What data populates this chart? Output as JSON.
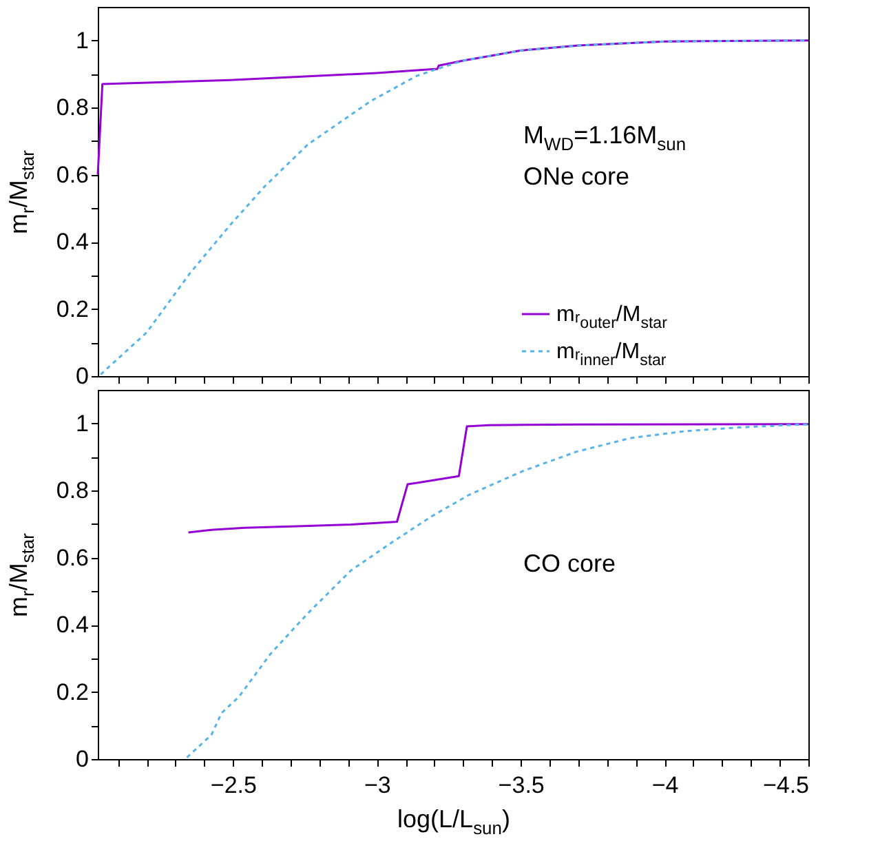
{
  "chart_data": [
    {
      "type": "line",
      "ylabel": "m$_{r}$/M$_{star}$",
      "annotations": [
        "M$_{WD}$=1.16M$_{sun}$",
        "ONe core"
      ],
      "legend": "bottom right",
      "tick_labels": "y",
      "marker": "none",
      "xlim": [
        -2.03,
        -4.5
      ],
      "ylim": [
        0,
        1.1
      ],
      "xticks": [
        {
          "value": -2.1,
          "label": null
        },
        {
          "value": -2.2,
          "label": null
        },
        {
          "value": -2.3,
          "label": null
        },
        {
          "value": -2.4,
          "label": null
        },
        -2.5,
        {
          "value": -2.6,
          "label": null
        },
        {
          "value": -2.7,
          "label": null
        },
        {
          "value": -2.8,
          "label": null
        },
        {
          "value": -2.9,
          "label": null
        },
        -3,
        {
          "value": -3.1,
          "label": null
        },
        {
          "value": -3.2,
          "label": null
        },
        {
          "value": -3.3,
          "label": null
        },
        {
          "value": -3.4,
          "label": null
        },
        -3.5,
        {
          "value": -3.6,
          "label": null
        },
        {
          "value": -3.7,
          "label": null
        },
        {
          "value": -3.8,
          "label": null
        },
        {
          "value": -3.9,
          "label": null
        },
        -4,
        {
          "value": -4.1,
          "label": null
        },
        {
          "value": -4.2,
          "label": null
        },
        {
          "value": -4.3,
          "label": null
        },
        {
          "value": -4.4,
          "label": null
        },
        -4.5
      ],
      "yticks": [
        0,
        {
          "value": 0.1,
          "label": null
        },
        0.2,
        {
          "value": 0.3,
          "label": null
        },
        0.4,
        {
          "value": 0.5,
          "label": null
        },
        0.6,
        {
          "value": 0.7,
          "label": null
        },
        0.8,
        {
          "value": 0.9,
          "label": null
        },
        1
      ],
      "series": [
        {
          "name": "mᵣ$_{outer}$/M$_{star}$",
          "color": "#9400d3",
          "line_style": "solid",
          "x": [
            -2.03,
            -2.046,
            -2.49,
            -3.0,
            -3.2,
            -3.21,
            -3.215,
            -3.3,
            -3.4,
            -3.5,
            -3.7,
            -4.0,
            -4.5
          ],
          "values": [
            0.6,
            0.87,
            0.882,
            0.903,
            0.915,
            0.915,
            0.925,
            0.94,
            0.955,
            0.97,
            0.985,
            0.997,
            1.0
          ]
        },
        {
          "name": "mᵣ$_{inner}$/M$_{star}$",
          "color": "#56b4e9",
          "line_style": "dotted",
          "x": [
            -2.04,
            -2.2,
            -2.35,
            -2.49,
            -2.61,
            -2.76,
            -2.98,
            -3.14,
            -3.21,
            -3.3,
            -3.4,
            -3.5,
            -3.7,
            -4.0,
            -4.5
          ],
          "values": [
            0.005,
            0.13,
            0.306,
            0.45,
            0.565,
            0.69,
            0.82,
            0.895,
            0.915,
            0.94,
            0.955,
            0.97,
            0.985,
            0.997,
            1.0
          ]
        }
      ]
    },
    {
      "type": "line",
      "xlabel": "log(L/L$_{sun}$)",
      "ylabel": "m$_{r}$/M$_{star}$",
      "annotations": [
        "CO core"
      ],
      "marker": "none",
      "xlim": [
        -2.03,
        -4.5
      ],
      "ylim": [
        0,
        1.1
      ],
      "xticks": [
        {
          "value": -2.1,
          "label": null
        },
        {
          "value": -2.2,
          "label": null
        },
        {
          "value": -2.3,
          "label": null
        },
        {
          "value": -2.4,
          "label": null
        },
        -2.5,
        {
          "value": -2.6,
          "label": null
        },
        {
          "value": -2.7,
          "label": null
        },
        {
          "value": -2.8,
          "label": null
        },
        {
          "value": -2.9,
          "label": null
        },
        -3,
        {
          "value": -3.1,
          "label": null
        },
        {
          "value": -3.2,
          "label": null
        },
        {
          "value": -3.3,
          "label": null
        },
        {
          "value": -3.4,
          "label": null
        },
        -3.5,
        {
          "value": -3.6,
          "label": null
        },
        {
          "value": -3.7,
          "label": null
        },
        {
          "value": -3.8,
          "label": null
        },
        {
          "value": -3.9,
          "label": null
        },
        -4,
        {
          "value": -4.1,
          "label": null
        },
        {
          "value": -4.2,
          "label": null
        },
        {
          "value": -4.3,
          "label": null
        },
        {
          "value": -4.4,
          "label": null
        },
        -4.5
      ],
      "yticks": [
        0,
        {
          "value": 0.1,
          "label": null
        },
        0.2,
        {
          "value": 0.3,
          "label": null
        },
        0.4,
        {
          "value": 0.5,
          "label": null
        },
        0.6,
        {
          "value": 0.7,
          "label": null
        },
        0.8,
        {
          "value": 0.9,
          "label": null
        },
        1
      ],
      "series": [
        {
          "color": "#9400d3",
          "line_style": "solid",
          "x": [
            -2.345,
            -2.425,
            -2.54,
            -2.743,
            -2.91,
            -3.07,
            -3.107,
            -3.14,
            -3.285,
            -3.313,
            -3.39,
            -3.7,
            -4.5
          ],
          "values": [
            0.675,
            0.683,
            0.689,
            0.694,
            0.699,
            0.707,
            0.819,
            0.823,
            0.843,
            0.991,
            0.995,
            0.997,
            0.998
          ]
        },
        {
          "color": "#56b4e9",
          "line_style": "dotted",
          "x": [
            -2.34,
            -2.425,
            -2.46,
            -2.52,
            -2.63,
            -2.76,
            -2.91,
            -3.06,
            -3.19,
            -3.32,
            -3.51,
            -3.695,
            -3.88,
            -4.07,
            -4.26,
            -4.455,
            -4.5
          ],
          "values": [
            0.005,
            0.072,
            0.137,
            0.185,
            0.313,
            0.434,
            0.562,
            0.65,
            0.723,
            0.787,
            0.859,
            0.916,
            0.956,
            0.977,
            0.988,
            0.996,
            0.997
          ]
        }
      ]
    }
  ]
}
